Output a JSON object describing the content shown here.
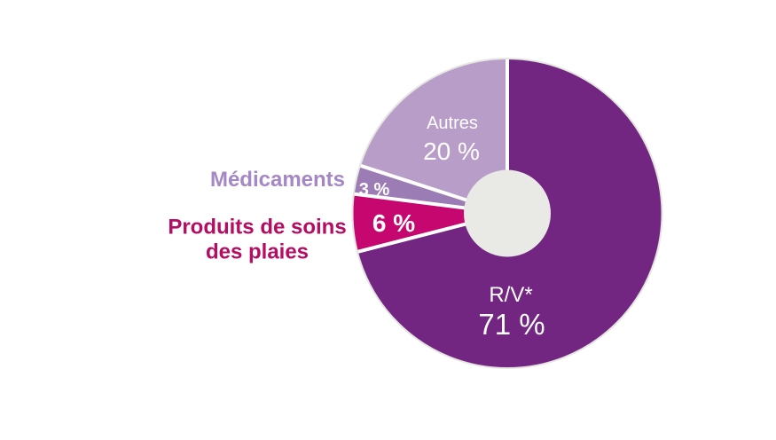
{
  "chart_data": {
    "type": "pie",
    "title": "",
    "donut": true,
    "direction": "clockwise",
    "start_angle_deg": 0,
    "legend": "none",
    "background_color": "#ffffff",
    "hole_color": "#e9e9e6",
    "outer_ring_color": "#e5e5e2",
    "divider_color": "#ffffff",
    "value_text_color": "#ffffff",
    "slices": [
      {
        "label": "R/V*",
        "value": 71,
        "pct_label": "71 %",
        "color": "#722682"
      },
      {
        "label": "Produits de soins des plaies",
        "value": 6,
        "pct_label": "6 %",
        "color": "#c6076f"
      },
      {
        "label": "Médicaments",
        "value": 3,
        "pct_label": "3 %",
        "color": "#9c7cb4"
      },
      {
        "label": "Autres",
        "value": 20,
        "pct_label": "20 %",
        "color": "#b89dc9"
      }
    ]
  },
  "external_labels": {
    "medicaments": {
      "text": "Médicaments",
      "color": "#a587c5"
    },
    "produits": {
      "line1": "Produits de soins",
      "line2": "des plaies",
      "color": "#b60c64"
    }
  }
}
